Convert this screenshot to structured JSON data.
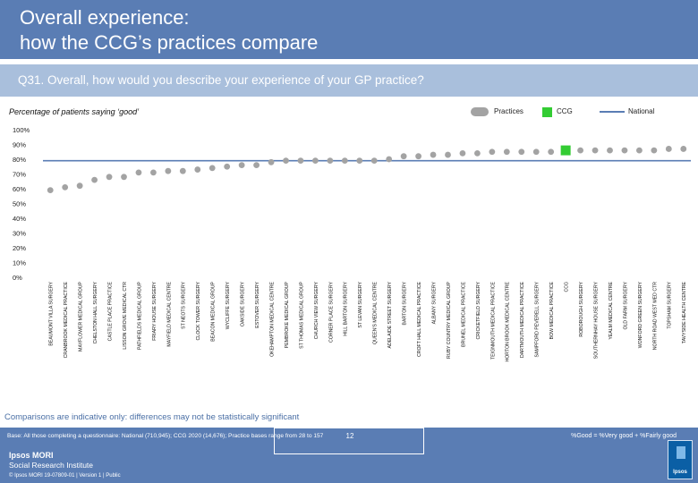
{
  "header": {
    "title_line1": "Overall experience:",
    "title_line2": "how the CCG’s practices compare"
  },
  "question": "Q31. Overall, how would you describe your experience of your GP practice?",
  "subtitle": "Percentage of patients saying ‘good’",
  "legend": {
    "practices": "Practices",
    "ccg": "CCG",
    "national": "National"
  },
  "colors": {
    "header_bg": "#5a7db4",
    "question_bg": "#a9bfdc",
    "practice_dot": "#a3a3a3",
    "ccg_marker": "#33cc33",
    "national_line": "#5a7db4",
    "note_text": "#4a6fa5"
  },
  "chart_data": {
    "type": "scatter",
    "title": "Percentage of patients saying ‘good’",
    "xlabel": "",
    "ylabel": "",
    "ylim": [
      0,
      100
    ],
    "yticks": [
      0,
      10,
      20,
      30,
      40,
      50,
      60,
      70,
      80,
      90,
      100
    ],
    "ytick_labels": [
      "0%",
      "10%",
      "20%",
      "30%",
      "40%",
      "50%",
      "60%",
      "70%",
      "80%",
      "90%",
      "100%"
    ],
    "grid": false,
    "legend_position": "top-right",
    "national_value": 79,
    "ccg_category": "CCG",
    "categories": [
      "BEAUMONT VILLA SURGERY",
      "CRANBROOK MEDICAL PRACTICE",
      "MAYFLOWER MEDICAL GROUP",
      "CHELSTON HALL SURGERY",
      "CASTLE PLACE PRACTICE",
      "LISSON GROVE MEDICAL CTR",
      "PATHFIELDS MEDICAL GROUP",
      "FRIARY HOUSE SURGERY",
      "MAYFIELD MEDICAL CENTRE",
      "ST NEOTS SURGERY",
      "CLOCK TOWER SURGERY",
      "BEACON MEDICAL GROUP",
      "WYCLIFFE SURGERY",
      "OAKSIDE SURGERY",
      "ESTOVER SURGERY",
      "OKEHAMPTON MEDICAL CENTRE",
      "PEMBROKE MEDICAL GROUP",
      "ST THOMAS MEDICAL GROUP",
      "CHURCH VIEW SURGERY",
      "CORNER PLACE SURGERY",
      "HILL BARTON SURGERY",
      "ST LEVAN SURGERY",
      "QUEEN'S MEDICAL CENTRE",
      "ADELAIDE STREET SURGERY",
      "BARTON SURGERY",
      "CROFT HALL MEDICAL PRACTICE",
      "ALBANY SURGERY",
      "RUBY COUNTRY MEDICAL GROUP",
      "BRUNEL MEDICAL PRACTICE",
      "CRICKETFIELD SURGERY",
      "TEIGNMOUTH MEDICAL PRACTICE",
      "HORTON BROOK MEDICAL CENTRE",
      "DARTMOUTH MEDICAL PRACTICE",
      "SAMPFORD PEVERELL SURGERY",
      "BOW MEDICAL PRACTICE",
      "CCG",
      "ROBOROUGH SURGERY",
      "SOUTHERNHAY HOUSE SURGERY",
      "YEALM MEDICAL CENTRE",
      "OLD FARM SURGERY",
      "WONFORD GREEN SURGERY",
      "NORTH ROAD WEST MED CTR",
      "TOPSHAM SURGERY",
      "TAVYSIDE HEALTH CENTRE"
    ],
    "values": [
      59,
      61,
      62,
      66,
      68,
      68,
      71,
      71,
      72,
      72,
      73,
      74,
      75,
      76,
      76,
      78,
      79,
      79,
      79,
      79,
      79,
      79,
      79,
      80,
      82,
      82,
      83,
      83,
      84,
      84,
      85,
      85,
      85,
      85,
      85,
      86,
      86,
      86,
      86,
      86,
      86,
      86,
      87,
      87
    ]
  },
  "note": "Comparisons are indicative only: differences may not be statistically significant",
  "footer": {
    "base": "Base: All those completing a questionnaire: National (710,945); CCG 2020 (14,676); Practice bases range from 28 to 157",
    "formula": "%Good = %Very good + %Fairly good",
    "page_number": "12",
    "logo_line1": "Ipsos MORI",
    "logo_line2": "Social Research Institute",
    "copyright": "© Ipsos MORI      19-07809-01 | Version 1 | Public",
    "badge_text": "Ipsos"
  }
}
